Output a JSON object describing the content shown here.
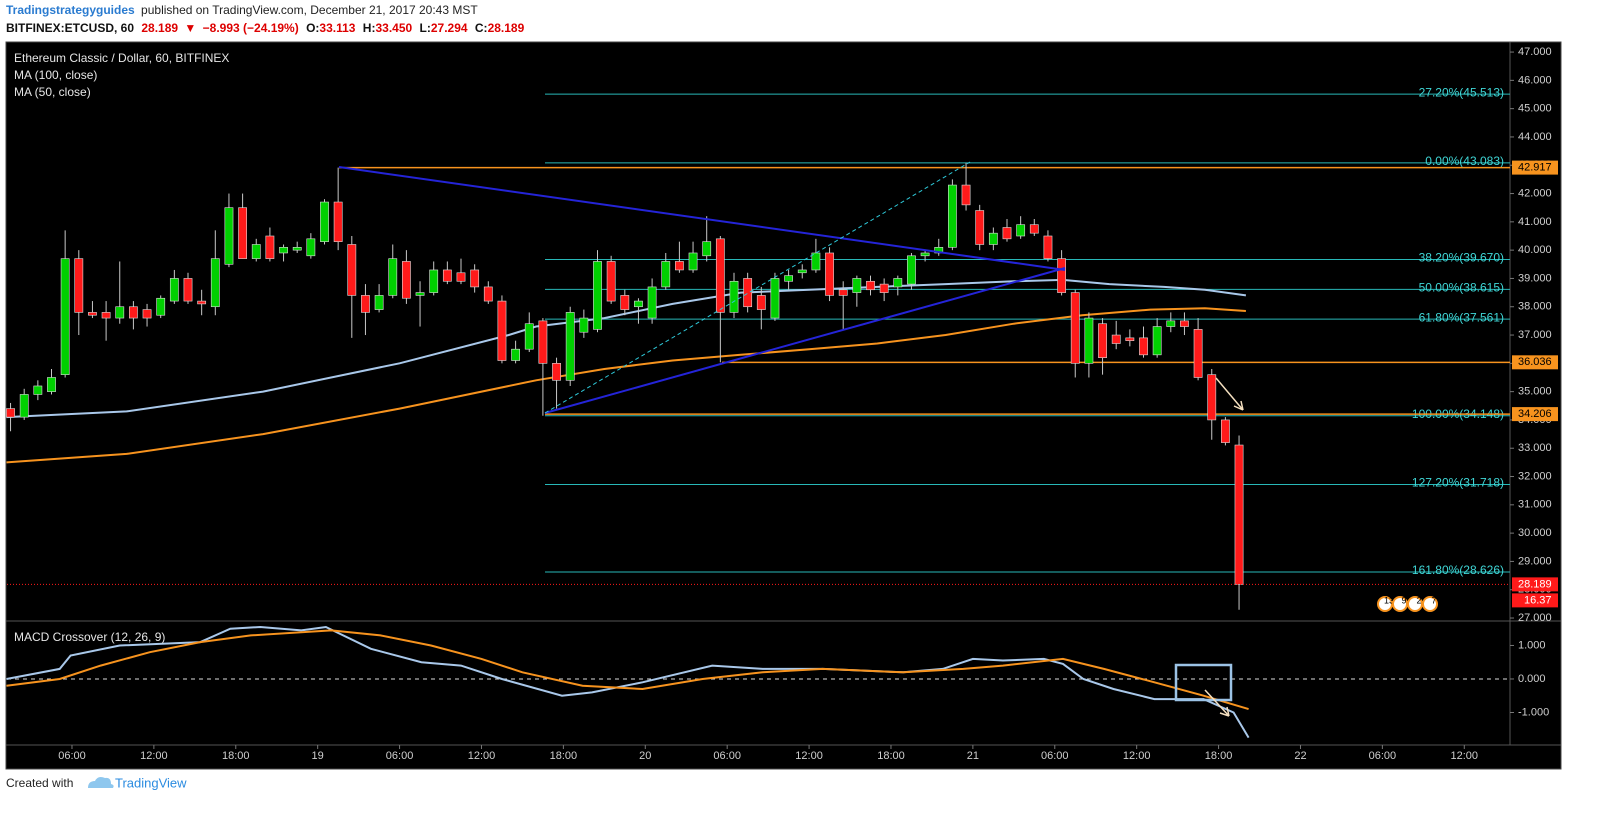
{
  "header": {
    "author": "Tradingstrategyguides",
    "published": "published on TradingView.com, December 21, 2017 20:43 MST",
    "symbol": "BITFINEX:ETCUSD, 60",
    "last": "28.189",
    "arrow": "▼",
    "change": "−8.993 (−24.19%)",
    "o_label": "O:",
    "o": "33.113",
    "h_label": "H:",
    "h": "33.450",
    "l_label": "L:",
    "l": "27.294",
    "c_label": "C:",
    "c": "28.189"
  },
  "footer": {
    "created": "Created with",
    "brand": "TradingView"
  },
  "chart_data": {
    "type": "candlestick",
    "title": "Ethereum Classic / Dollar, 60, BITFINEX",
    "up_color": "#00d000",
    "down_color": "#ff1a1a",
    "x": [
      1,
      2,
      3,
      4,
      5,
      6,
      7,
      8,
      9,
      10,
      11,
      12,
      13,
      14,
      15,
      16,
      17,
      18,
      19,
      20,
      21,
      22,
      23,
      24,
      25,
      26,
      27,
      28,
      29,
      30,
      31,
      32,
      33,
      34,
      35,
      36,
      37,
      38,
      39,
      40,
      41,
      42,
      43,
      44,
      45,
      46,
      47,
      48,
      49,
      50,
      51,
      52,
      53,
      54,
      55,
      56,
      57,
      58,
      59,
      60,
      61,
      62,
      63,
      64,
      65,
      66,
      67,
      68,
      69,
      70,
      71,
      72,
      73,
      74,
      75,
      76,
      77,
      78,
      79,
      80,
      81,
      82,
      83,
      84,
      85,
      86,
      87,
      88,
      89,
      90,
      91
    ],
    "open": [
      34.4,
      34.1,
      34.9,
      35.0,
      35.6,
      39.7,
      37.8,
      37.8,
      37.6,
      38.0,
      37.9,
      37.7,
      38.2,
      39.0,
      38.2,
      38.0,
      39.5,
      41.5,
      39.7,
      40.5,
      39.9,
      40.0,
      39.8,
      40.3,
      41.7,
      40.2,
      38.4,
      37.9,
      38.4,
      39.6,
      38.4,
      38.5,
      39.3,
      39.2,
      39.3,
      38.7,
      38.2,
      36.1,
      36.5,
      37.5,
      36.0,
      35.4,
      37.1,
      37.2,
      39.6,
      38.4,
      38.0,
      37.6,
      38.7,
      39.6,
      39.3,
      39.8,
      40.4,
      37.8,
      39.0,
      38.4,
      37.6,
      38.9,
      39.2,
      39.3,
      39.9,
      38.6,
      38.5,
      38.9,
      38.8,
      38.7,
      38.8,
      39.8,
      39.9,
      40.1,
      42.3,
      41.4,
      40.2,
      40.8,
      40.5,
      40.9,
      40.5,
      39.7,
      38.5,
      36.0,
      37.4,
      37.0,
      36.9,
      36.9,
      36.3,
      37.3,
      37.5,
      37.2,
      35.6,
      34.0,
      33.113
    ],
    "high": [
      34.6,
      35.1,
      35.4,
      35.8,
      40.7,
      40.0,
      38.2,
      38.2,
      39.6,
      38.2,
      38.1,
      38.4,
      39.3,
      39.2,
      38.6,
      40.7,
      42.0,
      42.0,
      40.4,
      40.8,
      40.2,
      40.3,
      40.6,
      41.8,
      42.917,
      40.5,
      38.8,
      38.8,
      40.2,
      40.0,
      38.9,
      39.6,
      39.6,
      39.7,
      39.5,
      38.9,
      38.4,
      36.8,
      37.8,
      37.6,
      36.2,
      38.0,
      37.9,
      40.0,
      39.8,
      38.6,
      38.3,
      39.0,
      39.9,
      40.3,
      40.3,
      41.2,
      40.5,
      39.2,
      39.2,
      38.7,
      39.2,
      39.3,
      39.5,
      40.4,
      40.1,
      38.9,
      39.1,
      39.1,
      39.0,
      39.1,
      39.9,
      40.0,
      40.4,
      42.5,
      43.083,
      41.6,
      40.8,
      41.1,
      41.2,
      41.1,
      40.7,
      40.0,
      38.6,
      37.8,
      37.6,
      37.5,
      37.2,
      37.3,
      37.6,
      37.8,
      37.8,
      37.6,
      35.8,
      34.1,
      33.45
    ],
    "low": [
      33.6,
      34.0,
      34.7,
      34.9,
      35.5,
      37.0,
      37.6,
      36.8,
      37.4,
      37.2,
      37.3,
      37.6,
      38.1,
      38.1,
      37.7,
      37.7,
      39.4,
      39.7,
      39.6,
      39.6,
      39.6,
      39.9,
      39.7,
      40.2,
      40.0,
      36.9,
      37.0,
      37.8,
      38.3,
      38.1,
      37.3,
      38.4,
      38.8,
      38.8,
      38.5,
      38.1,
      36.0,
      36.0,
      36.4,
      34.148,
      34.4,
      35.2,
      36.9,
      37.1,
      38.1,
      37.7,
      37.4,
      37.4,
      38.6,
      39.2,
      39.2,
      39.6,
      36.036,
      37.6,
      37.8,
      37.2,
      37.5,
      38.6,
      39.0,
      39.2,
      38.2,
      37.2,
      38.0,
      38.4,
      38.2,
      38.4,
      38.6,
      39.6,
      39.8,
      40.0,
      41.4,
      40.0,
      40.0,
      40.3,
      40.4,
      40.5,
      39.6,
      38.4,
      35.5,
      35.5,
      35.6,
      36.5,
      36.6,
      36.2,
      36.2,
      37.1,
      37.0,
      35.4,
      33.3,
      33.1,
      27.294
    ],
    "close": [
      34.1,
      34.9,
      35.2,
      35.5,
      39.7,
      37.8,
      37.7,
      37.6,
      38.0,
      37.6,
      37.6,
      38.3,
      39.0,
      38.2,
      38.1,
      39.7,
      41.5,
      39.7,
      40.2,
      39.7,
      40.1,
      40.1,
      40.4,
      41.7,
      40.3,
      38.4,
      37.8,
      38.4,
      39.7,
      38.3,
      38.5,
      39.3,
      38.9,
      38.9,
      38.7,
      38.2,
      36.1,
      36.5,
      37.4,
      36.0,
      35.4,
      37.8,
      37.6,
      39.6,
      38.2,
      37.9,
      38.2,
      38.7,
      39.6,
      39.3,
      39.9,
      40.3,
      37.8,
      38.9,
      38.0,
      37.9,
      39.0,
      39.1,
      39.3,
      39.9,
      38.4,
      38.4,
      39.0,
      38.6,
      38.5,
      39.0,
      39.8,
      39.9,
      40.1,
      42.3,
      41.6,
      40.2,
      40.6,
      40.4,
      40.9,
      40.6,
      39.7,
      38.5,
      36.0,
      37.6,
      36.2,
      36.7,
      36.8,
      36.3,
      37.3,
      37.5,
      37.3,
      35.5,
      34.0,
      33.2,
      28.189
    ],
    "xlim": [
      1.24,
      111.35
    ],
    "xticks": [
      {
        "value": 6,
        "label": "06:00"
      },
      {
        "value": 12,
        "label": "12:00"
      },
      {
        "value": 18,
        "label": "18:00"
      },
      {
        "value": 24,
        "label": "19"
      },
      {
        "value": 30,
        "label": "06:00"
      },
      {
        "value": 36,
        "label": "12:00"
      },
      {
        "value": 42,
        "label": "18:00"
      },
      {
        "value": 48,
        "label": "20"
      },
      {
        "value": 54,
        "label": "06:00"
      },
      {
        "value": 60,
        "label": "12:00"
      },
      {
        "value": 66,
        "label": "18:00"
      },
      {
        "value": 72,
        "label": "21"
      },
      {
        "value": 78,
        "label": "06:00"
      },
      {
        "value": 84,
        "label": "12:00"
      },
      {
        "value": 90,
        "label": "18:00"
      },
      {
        "value": 96,
        "label": "22"
      },
      {
        "value": 102,
        "label": "06:00"
      },
      {
        "value": 108,
        "label": "12:00"
      }
    ],
    "ylim": [
      26.93,
      47.32
    ],
    "yticks": [
      {
        "value": 47,
        "label": "47.000"
      },
      {
        "value": 46,
        "label": "46.000"
      },
      {
        "value": 45,
        "label": "45.000"
      },
      {
        "value": 44,
        "label": "44.000"
      },
      {
        "value": 43,
        "label": "43.000"
      },
      {
        "value": 42,
        "label": "42.000"
      },
      {
        "value": 41,
        "label": "41.000"
      },
      {
        "value": 40,
        "label": "40.000"
      },
      {
        "value": 39,
        "label": "39.000"
      },
      {
        "value": 38,
        "label": "38.000"
      },
      {
        "value": 37,
        "label": "37.000"
      },
      {
        "value": 36,
        "label": "36.000"
      },
      {
        "value": 35,
        "label": "35.000"
      },
      {
        "value": 34,
        "label": "34.000"
      },
      {
        "value": 33,
        "label": "33.000"
      },
      {
        "value": 32,
        "label": "32.000"
      },
      {
        "value": 31,
        "label": "31.000"
      },
      {
        "value": 30,
        "label": "30.000"
      },
      {
        "value": 29,
        "label": "29.000"
      },
      {
        "value": 28,
        "label": "28.000"
      },
      {
        "value": 27,
        "label": "27.000"
      }
    ],
    "ma": [
      {
        "name": "MA (100, close)",
        "color": "#f7931e",
        "x": [
          1.2,
          10,
          20,
          30,
          40,
          45,
          50,
          55,
          60,
          65,
          70,
          75,
          80,
          85,
          89,
          92
        ],
        "values": [
          32.5,
          32.8,
          33.5,
          34.4,
          35.4,
          35.8,
          36.1,
          36.3,
          36.5,
          36.7,
          37.0,
          37.4,
          37.7,
          37.9,
          37.95,
          37.85
        ]
      },
      {
        "name": "MA (50, close)",
        "color": "#a9c8ea",
        "x": [
          1.2,
          10,
          20,
          30,
          38,
          40,
          45,
          50,
          55,
          60,
          65,
          70,
          75,
          78.6,
          82,
          86,
          89,
          92
        ],
        "values": [
          34.1,
          34.3,
          35.0,
          36.0,
          37.0,
          37.3,
          37.6,
          38.1,
          38.5,
          38.6,
          38.7,
          38.8,
          38.9,
          38.95,
          38.8,
          38.7,
          38.6,
          38.4
        ]
      }
    ],
    "fib_levels": [
      {
        "value": 45.513,
        "label": "27.20%(45.513)"
      },
      {
        "value": 43.083,
        "label": "0.00%(43.083)"
      },
      {
        "value": 39.67,
        "label": "38.20%(39.670)"
      },
      {
        "value": 38.615,
        "label": "50.00%(38.615)"
      },
      {
        "value": 37.561,
        "label": "61.80%(37.561)"
      },
      {
        "value": 34.148,
        "label": "100.00%(34.148)"
      },
      {
        "value": 31.718,
        "label": "127.20%(31.718)"
      },
      {
        "value": 28.626,
        "label": "161.80%(28.626)"
      }
    ],
    "fib_color": "#28b8b8",
    "levels": [
      {
        "value": 42.917,
        "label": "42.917"
      },
      {
        "value": 36.036,
        "label": "36.036"
      },
      {
        "value": 34.206,
        "label": "34.206"
      }
    ],
    "level_color": "#f7931e",
    "last_price": {
      "value": 28.189,
      "label": "28.189",
      "countdown": "16.37",
      "color": "#ff1a1a"
    },
    "events": [
      "13",
      "9",
      "2",
      "7"
    ],
    "macd": {
      "title": "MACD Crossover (12, 26, 9)",
      "ylim": [
        -1.97,
        1.7
      ],
      "yticks": [
        {
          "value": 1,
          "label": "1.000"
        },
        {
          "value": 0,
          "label": "0.000"
        },
        {
          "value": -1,
          "label": "-1.000"
        }
      ],
      "series": [
        {
          "color": "#a9c8ea",
          "x": [
            1.2,
            5.1,
            5.9,
            9.5,
            15.4,
            17.6,
            19.8,
            22.8,
            24.6,
            27.9,
            31.6,
            34.5,
            37.5,
            41.9,
            44.1,
            47.8,
            52.9,
            56.6,
            61,
            66.9,
            69.8,
            72,
            74.2,
            77.2,
            78.6,
            80.1,
            82.3,
            85.3,
            88.9,
            91.1,
            92.2
          ],
          "values": [
            0.0,
            0.3,
            0.7,
            1.0,
            1.1,
            1.5,
            1.55,
            1.45,
            1.55,
            0.9,
            0.5,
            0.4,
            0.0,
            -0.5,
            -0.4,
            -0.1,
            0.4,
            0.3,
            0.3,
            0.2,
            0.3,
            0.6,
            0.55,
            0.6,
            0.45,
            0.0,
            -0.3,
            -0.6,
            -0.6,
            -1.0,
            -1.75
          ]
        },
        {
          "color": "#f7931e",
          "x": [
            1.2,
            5.1,
            8.1,
            11.7,
            15.4,
            19.1,
            25,
            28.6,
            32.3,
            36,
            39,
            43.4,
            47.8,
            52.2,
            56.6,
            61,
            66.9,
            71.3,
            74.2,
            78.6,
            81.6,
            85.3,
            88.9,
            92.2
          ],
          "values": [
            -0.2,
            0.0,
            0.4,
            0.8,
            1.1,
            1.3,
            1.45,
            1.3,
            1.0,
            0.6,
            0.2,
            -0.2,
            -0.3,
            0.0,
            0.2,
            0.3,
            0.2,
            0.3,
            0.4,
            0.6,
            0.3,
            -0.1,
            -0.5,
            -0.9
          ]
        }
      ]
    }
  }
}
